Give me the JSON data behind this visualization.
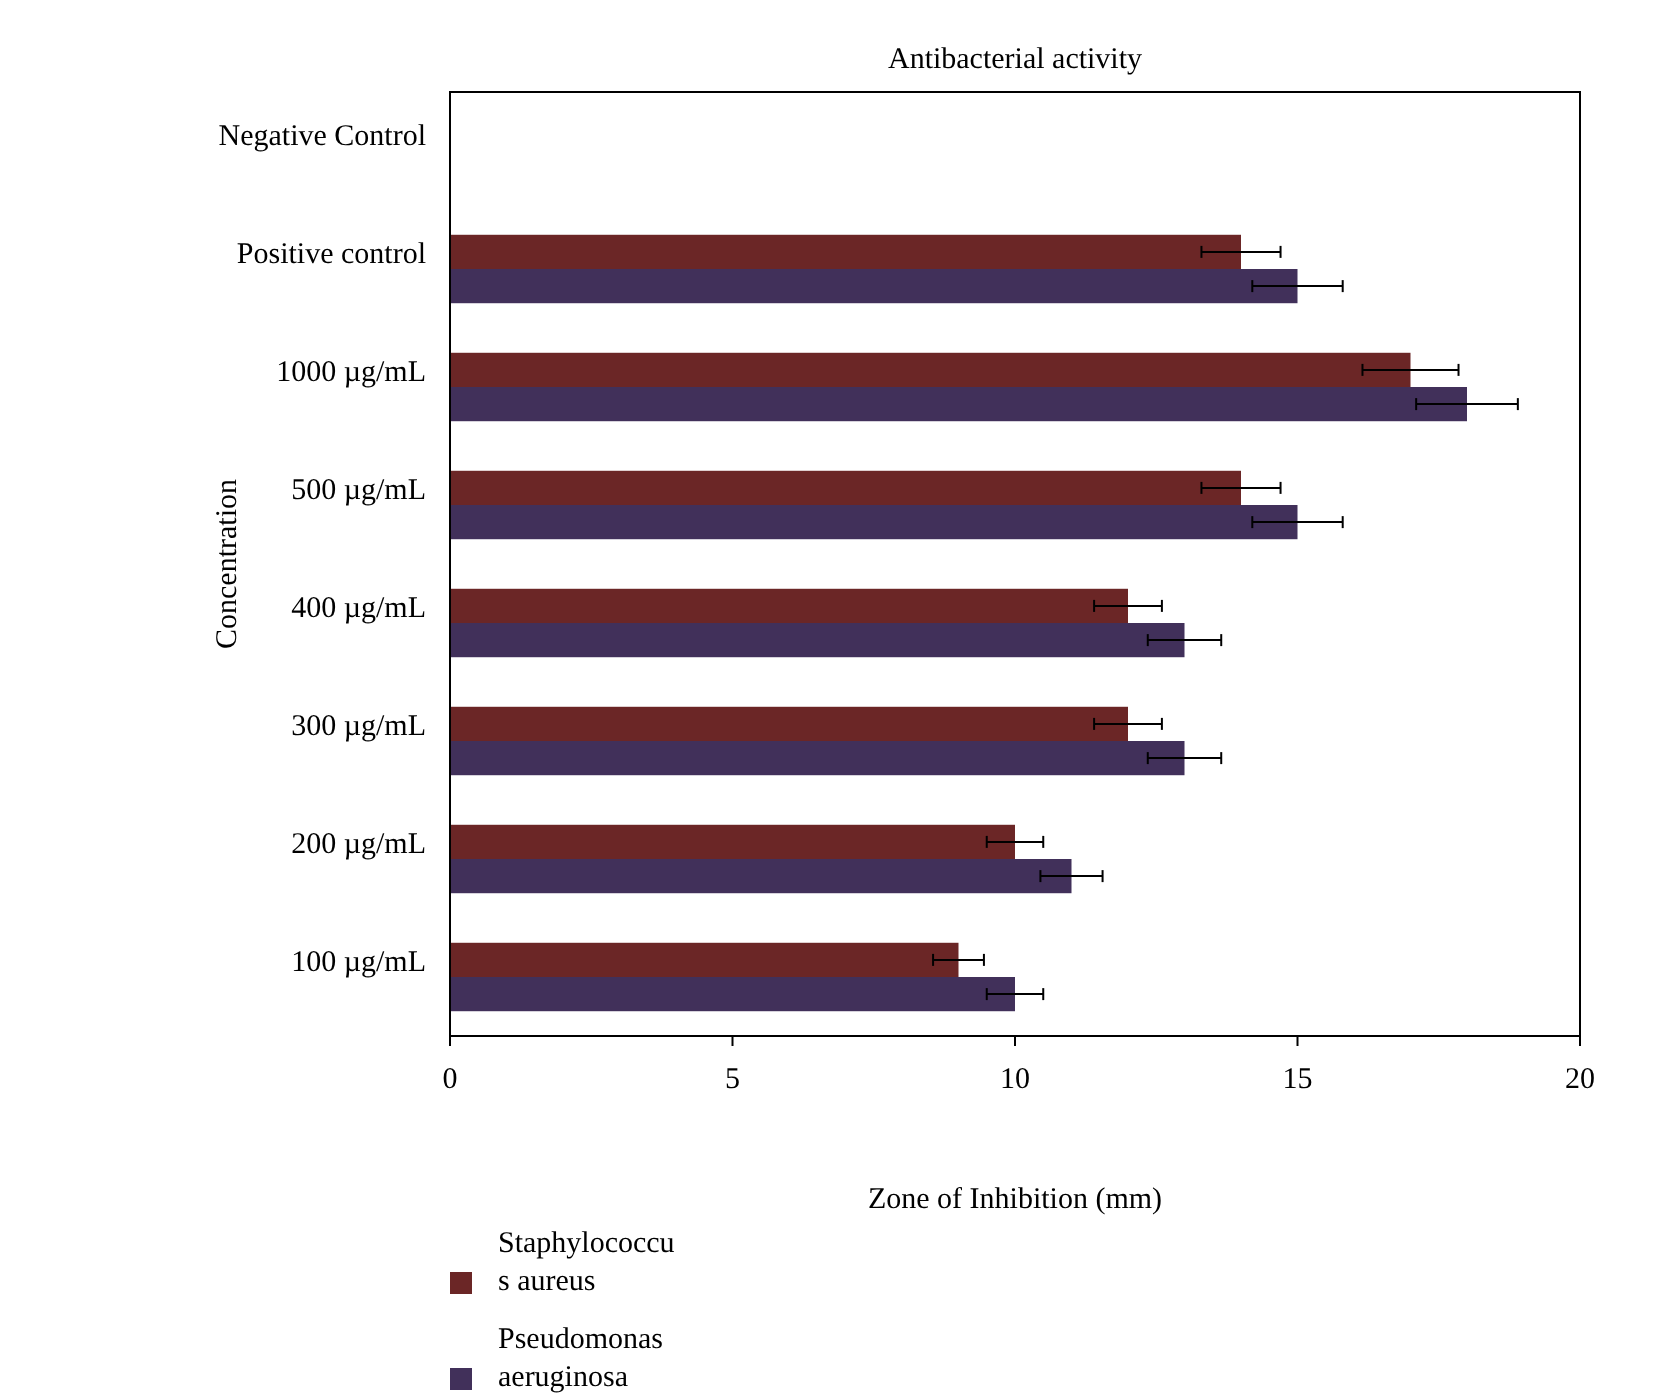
{
  "chart_data": {
    "type": "bar",
    "orientation": "horizontal",
    "title": "Antibacterial activity",
    "xlabel": "Zone of Inhibition (mm)",
    "ylabel": "Concentration",
    "categories": [
      "Negative Control",
      "Positive control",
      "1000 µg/mL",
      "500 µg/mL",
      "400 µg/mL",
      "300 µg/mL",
      "200 µg/mL",
      "100 µg/mL"
    ],
    "series": [
      {
        "name": "Staphylococcus aureus",
        "color": "#6b2626",
        "values": [
          0,
          14,
          17,
          14,
          12,
          12,
          10,
          9
        ],
        "errors": [
          null,
          0.7,
          0.85,
          0.7,
          0.6,
          0.6,
          0.5,
          0.45
        ]
      },
      {
        "name": "Pseudomonas aeruginosa",
        "color": "#41305a",
        "values": [
          0,
          15,
          18,
          15,
          13,
          13,
          11,
          10
        ],
        "errors": [
          null,
          0.8,
          0.9,
          0.8,
          0.65,
          0.65,
          0.55,
          0.5
        ]
      }
    ],
    "xlim": [
      0,
      20
    ],
    "xticks": [
      0,
      5,
      10,
      15,
      20
    ],
    "legend": "bottom left",
    "grid": false
  }
}
